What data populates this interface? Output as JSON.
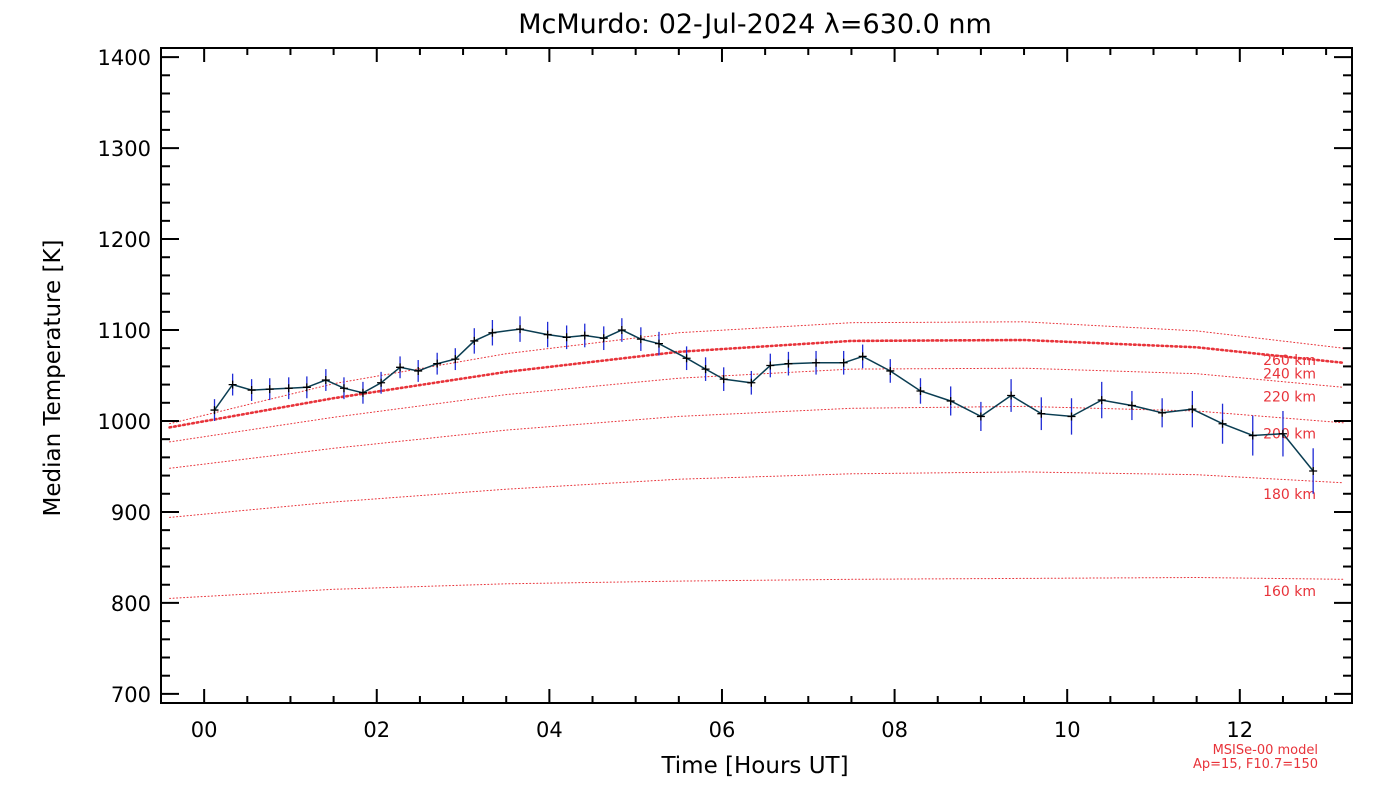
{
  "chart_data": {
    "type": "line",
    "title": "McMurdo: 02-Jul-2024 λ=630.0 nm",
    "xlabel": "Time [Hours UT]",
    "ylabel": "Median Temperature [K]",
    "xlim": [
      -0.5,
      13.3
    ],
    "ylim": [
      690,
      1410
    ],
    "xticks": [
      0,
      2,
      4,
      6,
      8,
      10,
      12
    ],
    "xtick_labels": [
      "00",
      "02",
      "04",
      "06",
      "08",
      "10",
      "12"
    ],
    "yticks": [
      700,
      800,
      900,
      1000,
      1100,
      1200,
      1300,
      1400
    ],
    "ytick_labels": [
      "700",
      "800",
      "900",
      "1000",
      "1100",
      "1200",
      "1300",
      "1400"
    ],
    "grid": false,
    "series": [
      {
        "style": "line-with-errorbars",
        "color": "#0a3d52",
        "error_color": "#1f2bd6",
        "x": [
          0.12,
          0.33,
          0.55,
          0.76,
          0.98,
          1.19,
          1.41,
          1.62,
          1.84,
          2.05,
          2.27,
          2.48,
          2.7,
          2.91,
          3.13,
          3.34,
          3.66,
          3.98,
          4.2,
          4.41,
          4.63,
          4.84,
          5.06,
          5.27,
          5.59,
          5.81,
          6.02,
          6.34,
          6.56,
          6.77,
          7.09,
          7.41,
          7.63,
          7.95,
          8.3,
          8.65,
          9.0,
          9.35,
          9.7,
          10.05,
          10.4,
          10.75,
          11.1,
          11.45,
          11.8,
          12.15,
          12.5,
          12.85
        ],
        "y": [
          1012,
          1040,
          1034,
          1035,
          1036,
          1037,
          1045,
          1036,
          1031,
          1042,
          1059,
          1055,
          1063,
          1068,
          1088,
          1097,
          1101,
          1095,
          1092,
          1094,
          1091,
          1100,
          1090,
          1085,
          1069,
          1057,
          1046,
          1042,
          1061,
          1063,
          1064,
          1064,
          1071,
          1055,
          1033,
          1022,
          1005,
          1028,
          1008,
          1005,
          1023,
          1017,
          1009,
          1013,
          997,
          984,
          986,
          945
        ],
        "err": [
          12,
          12,
          12,
          12,
          12,
          12,
          12,
          12,
          12,
          12,
          12,
          12,
          12,
          12,
          14,
          14,
          14,
          14,
          13,
          13,
          13,
          13,
          13,
          13,
          13,
          13,
          13,
          13,
          13,
          13,
          13,
          13,
          13,
          13,
          14,
          16,
          16,
          18,
          18,
          20,
          20,
          16,
          16,
          20,
          22,
          22,
          25,
          25
        ]
      },
      {
        "name": "260 km",
        "style": "dotted",
        "color": "#e8333a",
        "x": [
          -0.4,
          1.5,
          3.5,
          5.5,
          7.5,
          9.5,
          11.5,
          13.2
        ],
        "y": [
          997,
          1041,
          1074,
          1097,
          1108,
          1109,
          1099,
          1080
        ]
      },
      {
        "name": "240 km",
        "style": "dotted-thick",
        "color": "#e8333a",
        "x": [
          -0.4,
          1.5,
          3.5,
          5.5,
          7.5,
          9.5,
          11.5,
          13.2
        ],
        "y": [
          993,
          1025,
          1054,
          1076,
          1088,
          1089,
          1081,
          1064
        ]
      },
      {
        "name": "220 km",
        "style": "dotted",
        "color": "#e8333a",
        "x": [
          -0.4,
          1.5,
          3.5,
          5.5,
          7.5,
          9.5,
          11.5,
          13.2
        ],
        "y": [
          977,
          1004,
          1029,
          1047,
          1057,
          1058,
          1052,
          1037
        ]
      },
      {
        "name": "200 km",
        "style": "dotted",
        "color": "#e8333a",
        "x": [
          -0.4,
          1.5,
          3.5,
          5.5,
          7.5,
          9.5,
          11.5,
          13.2
        ],
        "y": [
          948,
          970,
          990,
          1005,
          1014,
          1016,
          1011,
          998
        ]
      },
      {
        "name": "180 km",
        "style": "dotted",
        "color": "#e8333a",
        "x": [
          -0.4,
          1.5,
          3.5,
          5.5,
          7.5,
          9.5,
          11.5,
          13.2
        ],
        "y": [
          894,
          911,
          925,
          936,
          942,
          944,
          941,
          932
        ]
      },
      {
        "name": "160 km",
        "style": "dotted",
        "color": "#e8333a",
        "x": [
          -0.4,
          1.5,
          3.5,
          5.5,
          7.5,
          9.5,
          11.5,
          13.2
        ],
        "y": [
          805,
          815,
          821,
          824,
          826,
          827,
          828,
          826
        ]
      }
    ],
    "model_labels": [
      {
        "text": "260 km",
        "y": 1067
      },
      {
        "text": "240 km",
        "y": 1052
      },
      {
        "text": "220 km",
        "y": 1027
      },
      {
        "text": "200 km",
        "y": 986
      },
      {
        "text": "180 km",
        "y": 920
      },
      {
        "text": "160 km",
        "y": 813
      }
    ],
    "model_note": [
      "MSISe-00 model",
      "Ap=15, F10.7=150"
    ]
  }
}
